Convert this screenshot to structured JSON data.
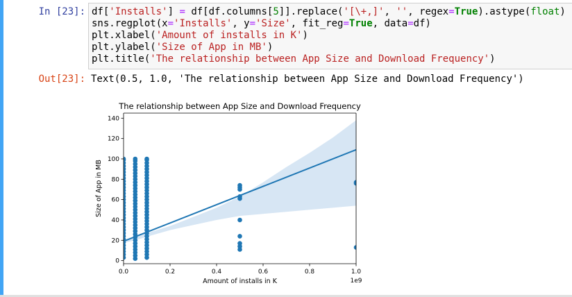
{
  "cell": {
    "in_prompt": "In [23]:",
    "out_prompt": "Out[23]:",
    "code_lines": [
      [
        {
          "t": "df[",
          "c": ""
        },
        {
          "t": "'Installs'",
          "c": "k-string"
        },
        {
          "t": "] ",
          "c": ""
        },
        {
          "t": "=",
          "c": "k-op"
        },
        {
          "t": " df[df.columns[",
          "c": ""
        },
        {
          "t": "5",
          "c": "k-num"
        },
        {
          "t": "]].replace(",
          "c": ""
        },
        {
          "t": "'[\\+,]'",
          "c": "k-string"
        },
        {
          "t": ", ",
          "c": ""
        },
        {
          "t": "''",
          "c": "k-string"
        },
        {
          "t": ", regex",
          "c": ""
        },
        {
          "t": "=",
          "c": "k-op"
        },
        {
          "t": "True",
          "c": "k-kw"
        },
        {
          "t": ").astype(",
          "c": ""
        },
        {
          "t": "float",
          "c": "k-builtin"
        },
        {
          "t": ")",
          "c": ""
        }
      ],
      [
        {
          "t": "sns.regplot(x",
          "c": ""
        },
        {
          "t": "=",
          "c": "k-op"
        },
        {
          "t": "'Installs'",
          "c": "k-string"
        },
        {
          "t": ", y",
          "c": ""
        },
        {
          "t": "=",
          "c": "k-op"
        },
        {
          "t": "'Size'",
          "c": "k-string"
        },
        {
          "t": ", fit_reg",
          "c": ""
        },
        {
          "t": "=",
          "c": "k-op"
        },
        {
          "t": "True",
          "c": "k-kw"
        },
        {
          "t": ", data",
          "c": ""
        },
        {
          "t": "=",
          "c": "k-op"
        },
        {
          "t": "df)",
          "c": ""
        }
      ],
      [
        {
          "t": "plt.xlabel(",
          "c": ""
        },
        {
          "t": "'Amount of installs in K'",
          "c": "k-string"
        },
        {
          "t": ")",
          "c": ""
        }
      ],
      [
        {
          "t": "plt.ylabel(",
          "c": ""
        },
        {
          "t": "'Size of App in MB'",
          "c": "k-string"
        },
        {
          "t": ")",
          "c": ""
        }
      ],
      [
        {
          "t": "plt.title(",
          "c": ""
        },
        {
          "t": "'The relationship between App Size and Download Frequency'",
          "c": "k-string"
        },
        {
          "t": ")",
          "c": ""
        }
      ]
    ],
    "output_text": "Text(0.5, 1.0, 'The relationship between App Size and Download Frequency')"
  },
  "chart_data": {
    "type": "scatter",
    "title": "The relationship between App Size and Download Frequency",
    "xlabel": "Amount of installs in K",
    "ylabel": "Size of App in MB",
    "x_offset_label": "1e9",
    "x_ticks": [
      "0.0",
      "0.2",
      "0.4",
      "0.6",
      "0.8",
      "1.0"
    ],
    "y_ticks": [
      "0",
      "20",
      "40",
      "60",
      "80",
      "100",
      "120",
      "140"
    ],
    "xlim": [
      0,
      1.0
    ],
    "ylim": [
      -3,
      145
    ],
    "point_color": "#1f77b4",
    "band_color": "#c6dbef",
    "points": [
      {
        "x": 0.0,
        "y": [
          3,
          6,
          9,
          12,
          15,
          18,
          21,
          24,
          27,
          30,
          33,
          36,
          39,
          42,
          45,
          48,
          51,
          54,
          57,
          60,
          63,
          66,
          69,
          72,
          75,
          78,
          81,
          84,
          87,
          90,
          93,
          96,
          99,
          100
        ]
      },
      {
        "x": 0.05,
        "y": [
          2,
          5,
          8,
          11,
          14,
          17,
          20,
          23,
          26,
          29,
          32,
          35,
          38,
          41,
          44,
          47,
          50,
          53,
          56,
          59,
          62,
          65,
          68,
          71,
          74,
          77,
          80,
          83,
          86,
          89,
          92,
          95,
          98,
          100
        ]
      },
      {
        "x": 0.1,
        "y": [
          3,
          6,
          9,
          12,
          15,
          18,
          21,
          24,
          27,
          30,
          33,
          36,
          39,
          42,
          45,
          48,
          51,
          54,
          57,
          60,
          63,
          66,
          69,
          72,
          75,
          78,
          81,
          84,
          87,
          90,
          93,
          96,
          99,
          100
        ]
      },
      {
        "x": 0.5,
        "y": [
          11,
          14,
          17,
          24,
          40,
          61,
          63,
          70,
          72,
          74
        ]
      },
      {
        "x": 1.0,
        "y": [
          13,
          76,
          77
        ]
      }
    ],
    "regression": {
      "x": [
        0,
        1.0
      ],
      "y": [
        19,
        109
      ]
    },
    "confidence_band": {
      "x": [
        0,
        0.05,
        0.1,
        0.2,
        0.3,
        0.4,
        0.5,
        0.6,
        0.7,
        0.8,
        0.9,
        1.0
      ],
      "upper": [
        20.5,
        24,
        27,
        34,
        43,
        52,
        63,
        77,
        92,
        106,
        121,
        138
      ],
      "lower": [
        17.5,
        20,
        23.5,
        30,
        35,
        40,
        44,
        46,
        48,
        50,
        52,
        54
      ]
    }
  }
}
